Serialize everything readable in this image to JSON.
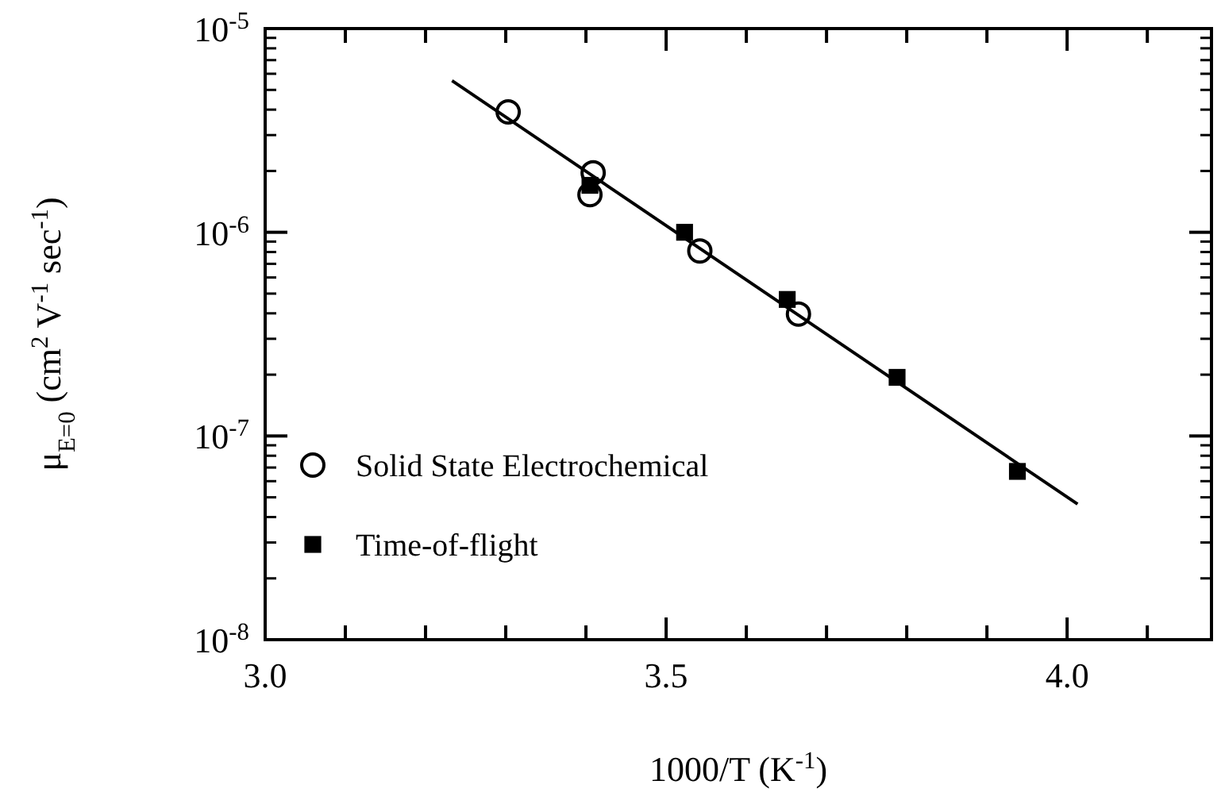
{
  "chart_data": {
    "type": "scatter",
    "xlabel": "1000/T (K$^{-1}$)",
    "ylabel": "μ$_{E=0}$ (cm$^{2}$ V$^{-1}$ sec$^{-1}$)",
    "log": "y",
    "xlim": [
      3.0,
      4.18
    ],
    "ylim": [
      1e-08,
      1e-05
    ],
    "xticks": [
      {
        "value": 3.0,
        "label": "3.0"
      },
      {
        "value": 3.1,
        "label": null
      },
      {
        "value": 3.2,
        "label": null
      },
      {
        "value": 3.3,
        "label": null
      },
      {
        "value": 3.4,
        "label": null
      },
      {
        "value": 3.5,
        "label": "3.5"
      },
      {
        "value": 3.6,
        "label": null
      },
      {
        "value": 3.7,
        "label": null
      },
      {
        "value": 3.8,
        "label": null
      },
      {
        "value": 3.9,
        "label": null
      },
      {
        "value": 4.0,
        "label": "4.0"
      },
      {
        "value": 4.1,
        "label": null
      }
    ],
    "yticks": [
      {
        "value": 1e-08,
        "label": "10$^{-8}$"
      },
      {
        "value": 1e-07,
        "label": "10$^{-7}$"
      },
      {
        "value": 1e-06,
        "label": "10$^{-6}$"
      },
      {
        "value": 1e-05,
        "label": "10$^{-5}$"
      }
    ],
    "grid": false,
    "legend": "bottom left",
    "series": [
      {
        "name": "Solid State Electrochemical",
        "color": "#000000",
        "marker": "circle",
        "x": [
          3.303,
          3.409,
          3.405,
          3.542,
          3.665
        ],
        "values": [
          3.9e-06,
          1.96e-06,
          1.53e-06,
          8.1e-07,
          3.97e-07
        ]
      },
      {
        "name": "Time-of-flight",
        "color": "#000000",
        "marker": "square",
        "x": [
          3.405,
          3.523,
          3.651,
          3.788,
          3.938
        ],
        "values": [
          1.7e-06,
          1e-06,
          4.68e-07,
          1.94e-07,
          6.7e-08
        ]
      },
      {
        "type": "line",
        "color": "#000000",
        "marker": "none",
        "line_style": "solid",
        "x": [
          3.233,
          4.013
        ],
        "values": [
          5.55e-06,
          4.63e-08
        ]
      }
    ]
  }
}
